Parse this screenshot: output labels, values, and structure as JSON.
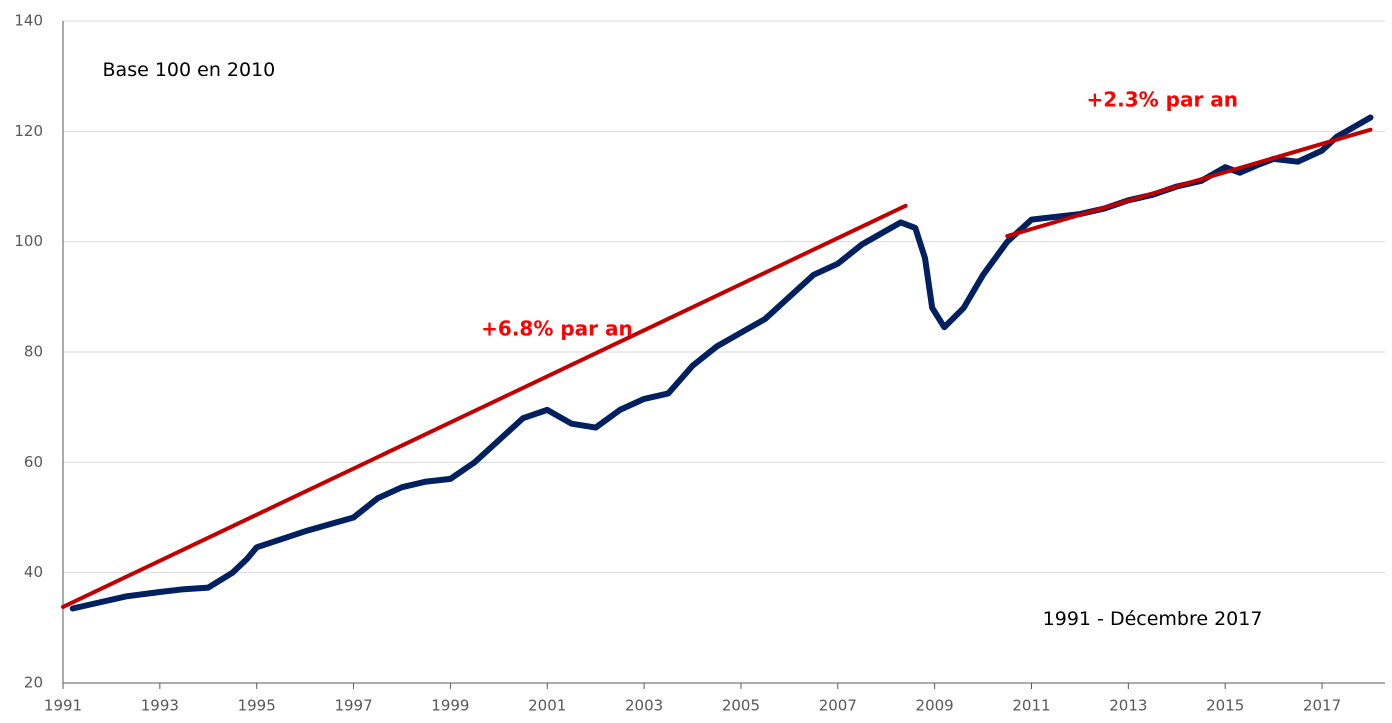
{
  "chart_data": {
    "type": "line",
    "annotations": [
      {
        "text": "Base 100 en 2010",
        "x": 1993.6,
        "y": 131
      },
      {
        "text": "+6.8% par an",
        "x": 2001.2,
        "y": 84
      },
      {
        "text": "+2.3% par an",
        "x": 2013.7,
        "y": 125.5
      },
      {
        "text": "1991 - Décembre 2017",
        "x": 2013.5,
        "y": 31.5
      }
    ],
    "x": [
      1991.2,
      1991.7,
      1992.3,
      1993,
      1993.5,
      1994,
      1994.5,
      1994.8,
      1995,
      1996,
      1997,
      1997.5,
      1998,
      1998.5,
      1999,
      1999.5,
      2000,
      2000.5,
      2001,
      2001.5,
      2002,
      2002.5,
      2003,
      2003.5,
      2004,
      2004.5,
      2005,
      2005.5,
      2006,
      2006.5,
      2007,
      2007.5,
      2008,
      2008.3,
      2008.6,
      2008.8,
      2008.95,
      2009.2,
      2009.6,
      2010,
      2010.5,
      2011,
      2011.5,
      2012,
      2012.5,
      2013,
      2013.5,
      2014,
      2014.5,
      2015,
      2015.3,
      2015.7,
      2016,
      2016.5,
      2017,
      2017.3,
      2017.6,
      2018
    ],
    "values": [
      33.5,
      34.5,
      35.7,
      36.5,
      37,
      37.3,
      40,
      42.5,
      44.6,
      47.5,
      50,
      53.5,
      55.5,
      56.5,
      57,
      60,
      64,
      68,
      69.5,
      67,
      66.3,
      69.5,
      71.5,
      72.5,
      77.5,
      81,
      83.5,
      86,
      90,
      94,
      96,
      99.5,
      102,
      103.5,
      102.5,
      97,
      88,
      84.5,
      88,
      94,
      100,
      104,
      104.5,
      105,
      106,
      107.5,
      108.5,
      110,
      111,
      113.5,
      112.5,
      114,
      115,
      114.5,
      116.5,
      119,
      120.5,
      122.5
    ],
    "color": "#002060",
    "trends": [
      {
        "x": [
          1991,
          2008.4
        ],
        "values": [
          33.8,
          106.5
        ],
        "color": "#c00000"
      },
      {
        "x": [
          2010.5,
          2018
        ],
        "values": [
          101,
          120.3
        ],
        "color": "#c00000"
      }
    ],
    "xlim": [
      1991,
      2018.3
    ],
    "xticks": [
      1991,
      1993,
      1995,
      1997,
      1999,
      2001,
      2003,
      2005,
      2007,
      2009,
      2011,
      2013,
      2015,
      2017
    ],
    "ylim": [
      20,
      140
    ],
    "yticks": [
      20,
      40,
      60,
      80,
      100,
      120,
      140
    ],
    "grid": true
  }
}
